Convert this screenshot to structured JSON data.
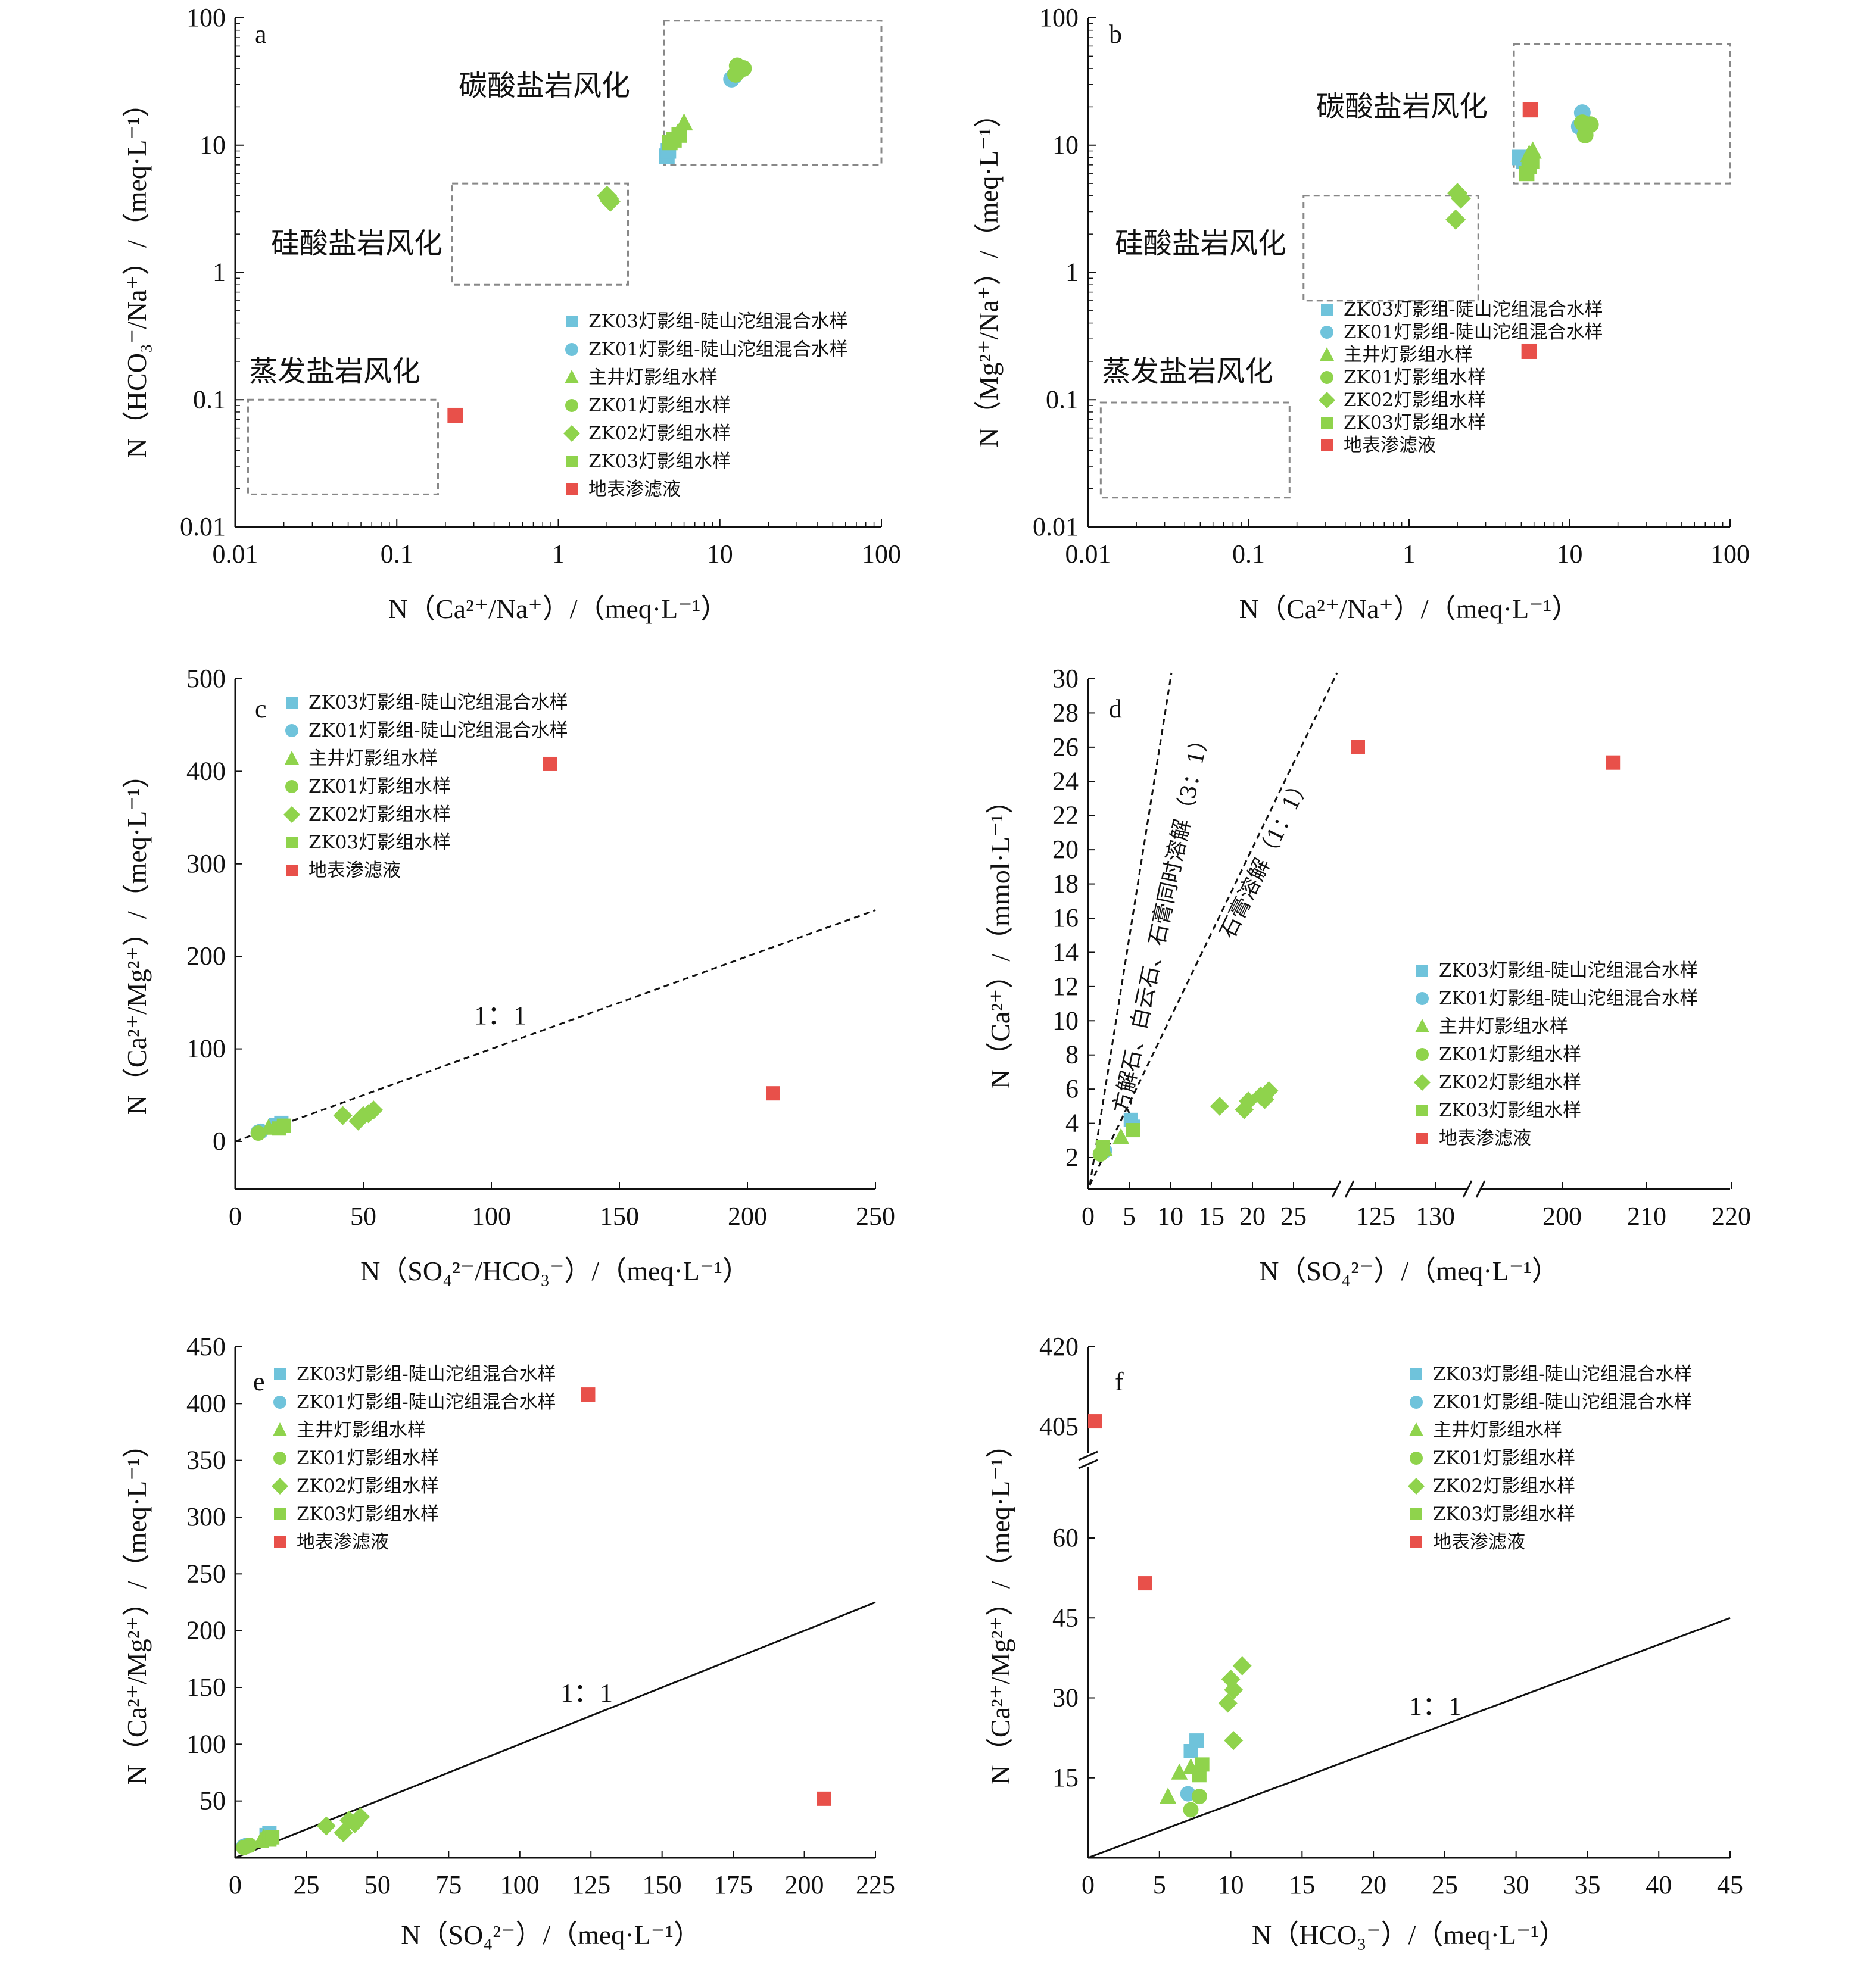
{
  "colors": {
    "blue": "#6fc3db",
    "green": "#8fd34c",
    "red": "#e8504a",
    "axis": "#111111",
    "zone": "#888888"
  },
  "legend": [
    {
      "key": "zk03_mix",
      "label": "ZK03灯影组-陡山沱组混合水样",
      "marker": "square",
      "color": "#6fc3db"
    },
    {
      "key": "zk01_mix",
      "label": "ZK01灯影组-陡山沱组混合水样",
      "marker": "circle",
      "color": "#6fc3db"
    },
    {
      "key": "main",
      "label": "主井灯影组水样",
      "marker": "triangle",
      "color": "#8fd34c"
    },
    {
      "key": "zk01",
      "label": "ZK01灯影组水样",
      "marker": "circle",
      "color": "#8fd34c"
    },
    {
      "key": "zk02",
      "label": "ZK02灯影组水样",
      "marker": "diamond",
      "color": "#8fd34c"
    },
    {
      "key": "zk03",
      "label": "ZK03灯影组水样",
      "marker": "square",
      "color": "#8fd34c"
    },
    {
      "key": "leach",
      "label": "地表渗滤液",
      "marker": "square",
      "color": "#e8504a"
    }
  ],
  "chart_data": [
    {
      "panel": "a",
      "type": "scatter",
      "xscale": "log",
      "yscale": "log",
      "xlim": [
        0.01,
        100
      ],
      "ylim": [
        0.01,
        100
      ],
      "xticks": [
        "0.01",
        "0.1",
        "1",
        "10",
        "100"
      ],
      "yticks": [
        "0.01",
        "0.1",
        "1",
        "10",
        "100"
      ],
      "xlabel": "N（Ca²⁺/Na⁺）/（meq·L⁻¹）",
      "ylabel": "N（HCO₃⁻/Na⁺）/（meq·L⁻¹）",
      "zones": [
        {
          "label": "碳酸盐岩风化",
          "x": [
            4.5,
            100
          ],
          "y": [
            7,
            95
          ]
        },
        {
          "label": "硅酸盐岩风化",
          "x": [
            0.22,
            2.7
          ],
          "y": [
            0.8,
            5
          ]
        },
        {
          "label": "蒸发盐岩风化",
          "x": [
            0.012,
            0.18
          ],
          "y": [
            0.018,
            0.1
          ]
        }
      ],
      "series": [
        {
          "key": "zk03_mix",
          "points": [
            [
              4.7,
              8.2
            ],
            [
              4.8,
              9.0
            ]
          ]
        },
        {
          "key": "zk01_mix",
          "points": [
            [
              11.8,
              33
            ],
            [
              12.3,
              35
            ]
          ]
        },
        {
          "key": "main",
          "points": [
            [
              5.5,
              12.5
            ],
            [
              6.0,
              15.0
            ]
          ]
        },
        {
          "key": "zk01",
          "points": [
            [
              12.5,
              36
            ],
            [
              12.8,
              42
            ],
            [
              14.0,
              40
            ],
            [
              13.0,
              38
            ]
          ]
        },
        {
          "key": "zk02",
          "points": [
            [
              2.0,
              4.0
            ],
            [
              2.1,
              3.6
            ],
            [
              2.05,
              3.8
            ]
          ]
        },
        {
          "key": "zk03",
          "points": [
            [
              5.2,
              11.0
            ],
            [
              5.6,
              12.0
            ],
            [
              4.9,
              10.5
            ]
          ]
        },
        {
          "key": "leach",
          "points": [
            [
              0.23,
              0.075
            ]
          ]
        }
      ]
    },
    {
      "panel": "b",
      "type": "scatter",
      "xscale": "log",
      "yscale": "log",
      "xlim": [
        0.01,
        100
      ],
      "ylim": [
        0.01,
        100
      ],
      "xticks": [
        "0.01",
        "0.1",
        "1",
        "10",
        "100"
      ],
      "yticks": [
        "0.01",
        "0.1",
        "1",
        "10",
        "100"
      ],
      "xlabel": "N（Ca²⁺/Na⁺）/（meq·L⁻¹）",
      "ylabel": "N（Mg²⁺/Na⁺）/（meq·L⁻¹）",
      "zones": [
        {
          "label": "碳酸盐岩风化",
          "x": [
            4.5,
            100
          ],
          "y": [
            5,
            62
          ]
        },
        {
          "label": "硅酸盐岩风化",
          "x": [
            0.22,
            2.7
          ],
          "y": [
            0.6,
            4
          ]
        },
        {
          "label": "蒸发盐岩风化",
          "x": [
            0.012,
            0.18
          ],
          "y": [
            0.017,
            0.095
          ]
        }
      ],
      "series": [
        {
          "key": "zk03_mix",
          "points": [
            [
              4.9,
              8.0
            ],
            [
              5.2,
              7.5
            ]
          ]
        },
        {
          "key": "zk01_mix",
          "points": [
            [
              11.5,
              14.0
            ],
            [
              12.0,
              18.0
            ]
          ]
        },
        {
          "key": "main",
          "points": [
            [
              5.6,
              8.5
            ],
            [
              5.9,
              9.0
            ]
          ]
        },
        {
          "key": "zk01",
          "points": [
            [
              12.5,
              12.0
            ],
            [
              13.5,
              14.5
            ],
            [
              12.0,
              15.0
            ]
          ]
        },
        {
          "key": "zk02",
          "points": [
            [
              2.0,
              4.2
            ],
            [
              2.1,
              3.8
            ],
            [
              1.95,
              2.6
            ]
          ]
        },
        {
          "key": "zk03",
          "points": [
            [
              5.4,
              6.0
            ],
            [
              5.6,
              6.8
            ],
            [
              5.8,
              7.5
            ]
          ]
        },
        {
          "key": "leach",
          "points": [
            [
              5.7,
              19.0
            ],
            [
              5.6,
              0.24
            ]
          ]
        }
      ]
    },
    {
      "panel": "c",
      "type": "scatter",
      "xlim": [
        0,
        250
      ],
      "ylim": [
        -50,
        500
      ],
      "xticks": [
        "0",
        "50",
        "100",
        "150",
        "200",
        "250"
      ],
      "yticks": [
        "0",
        "100",
        "200",
        "300",
        "400",
        "500"
      ],
      "xlabel": "N（SO₄²⁻/HCO₃⁻）/（meq·L⁻¹）",
      "ylabel": "N（Ca²⁺/Mg²⁺）/（meq·L⁻¹）",
      "ratio_line": {
        "label": "1：1",
        "style": "dashed",
        "points": [
          [
            0,
            0
          ],
          [
            250,
            250
          ]
        ]
      },
      "series": [
        {
          "key": "zk03_mix",
          "points": [
            [
              16,
              18
            ],
            [
              18,
              20
            ]
          ]
        },
        {
          "key": "zk01_mix",
          "points": [
            [
              9,
              10
            ],
            [
              10,
              11
            ]
          ]
        },
        {
          "key": "main",
          "points": [
            [
              13,
              15
            ]
          ]
        },
        {
          "key": "zk01",
          "points": [
            [
              9,
              9
            ]
          ]
        },
        {
          "key": "zk02",
          "points": [
            [
              42,
              28
            ],
            [
              48,
              22
            ],
            [
              50,
              28
            ],
            [
              52,
              30
            ],
            [
              54,
              34
            ]
          ]
        },
        {
          "key": "zk03",
          "points": [
            [
              17,
              14
            ],
            [
              19,
              17
            ]
          ]
        },
        {
          "key": "leach",
          "points": [
            [
              123,
              408
            ],
            [
              210,
              52
            ]
          ]
        }
      ]
    },
    {
      "panel": "d",
      "type": "scatter",
      "broken_x_axis": true,
      "ylim": [
        0,
        30
      ],
      "xticks": [
        "0",
        "5",
        "10",
        "15",
        "20",
        "25",
        "125",
        "130",
        "200",
        "210",
        "220"
      ],
      "yticks": [
        "2",
        "4",
        "6",
        "8",
        "10",
        "12",
        "14",
        "16",
        "18",
        "20",
        "22",
        "24",
        "26",
        "28",
        "30"
      ],
      "xlabel": "N（SO₄²⁻）/（meq·L⁻¹）",
      "ylabel": "N（Ca²⁺）/（mmol·L⁻¹）",
      "ratio_lines": [
        {
          "label": "方解石、白云石、石膏同时溶解（3：1）",
          "style": "dashed"
        },
        {
          "label": "石膏溶解（1：1）",
          "style": "dashed"
        }
      ],
      "series": [
        {
          "key": "zk03_mix",
          "points": [
            [
              5.2,
              4.2
            ],
            [
              5.5,
              3.8
            ]
          ]
        },
        {
          "key": "zk01_mix",
          "points": [
            [
              2.0,
              2.4
            ]
          ]
        },
        {
          "key": "main",
          "points": [
            [
              4.0,
              3.2
            ],
            [
              2.0,
              2.5
            ]
          ]
        },
        {
          "key": "zk01",
          "points": [
            [
              1.5,
              2.2
            ]
          ]
        },
        {
          "key": "zk02",
          "points": [
            [
              16.0,
              5.0
            ],
            [
              19.0,
              4.8
            ],
            [
              19.5,
              5.3
            ],
            [
              21.0,
              5.6
            ],
            [
              22.0,
              5.9
            ],
            [
              21.5,
              5.4
            ]
          ]
        },
        {
          "key": "zk03",
          "points": [
            [
              5.5,
              3.6
            ],
            [
              1.8,
              2.6
            ]
          ]
        },
        {
          "key": "leach",
          "points": [
            [
              123.5,
              26.0
            ],
            [
              206.0,
              25.1
            ]
          ]
        }
      ]
    },
    {
      "panel": "e",
      "type": "scatter",
      "xlim": [
        0,
        225
      ],
      "ylim": [
        0,
        450
      ],
      "xticks": [
        "0",
        "25",
        "50",
        "75",
        "100",
        "125",
        "150",
        "175",
        "200",
        "225"
      ],
      "yticks": [
        "50",
        "100",
        "150",
        "200",
        "250",
        "300",
        "350",
        "400",
        "450"
      ],
      "xlabel": "N（SO₄²⁻）/（meq·L⁻¹）",
      "ylabel": "N（Ca²⁺/Mg²⁺）/（meq·L⁻¹）",
      "ratio_line": {
        "label": "1：1",
        "style": "solid",
        "points": [
          [
            0,
            0
          ],
          [
            225,
            225
          ]
        ]
      },
      "series": [
        {
          "key": "zk03_mix",
          "points": [
            [
              11,
              20
            ],
            [
              12,
              22
            ]
          ]
        },
        {
          "key": "zk01_mix",
          "points": [
            [
              3,
              10
            ],
            [
              4,
              11
            ]
          ]
        },
        {
          "key": "main",
          "points": [
            [
              9,
              15
            ],
            [
              10,
              18
            ]
          ]
        },
        {
          "key": "zk01",
          "points": [
            [
              3,
              9
            ],
            [
              5,
              11
            ]
          ]
        },
        {
          "key": "zk02",
          "points": [
            [
              32,
              28
            ],
            [
              38,
              22
            ],
            [
              40,
              33
            ],
            [
              42,
              30
            ],
            [
              44,
              36
            ]
          ]
        },
        {
          "key": "zk03",
          "points": [
            [
              12,
              16
            ],
            [
              13,
              18
            ]
          ]
        },
        {
          "key": "leach",
          "points": [
            [
              124,
              408
            ],
            [
              207,
              52
            ]
          ]
        }
      ]
    },
    {
      "panel": "f",
      "type": "scatter",
      "broken_y_axis": true,
      "xlim": [
        0,
        45
      ],
      "xticks": [
        "0",
        "5",
        "10",
        "15",
        "20",
        "25",
        "30",
        "35",
        "40",
        "45"
      ],
      "yticks": [
        "15",
        "30",
        "45",
        "60",
        "405",
        "420"
      ],
      "xlabel": "N（HCO₃⁻）/（meq·L⁻¹）",
      "ylabel": "N（Ca²⁺/Mg²⁺）/（meq·L⁻¹）",
      "ratio_line": {
        "label": "1：1",
        "style": "solid",
        "points": [
          [
            0,
            0
          ],
          [
            45,
            45
          ]
        ]
      },
      "series": [
        {
          "key": "zk03_mix",
          "points": [
            [
              7.2,
              20.0
            ],
            [
              7.6,
              22.0
            ]
          ]
        },
        {
          "key": "zk01_mix",
          "points": [
            [
              7.0,
              12.0
            ]
          ]
        },
        {
          "key": "main",
          "points": [
            [
              5.6,
              11.5
            ],
            [
              6.4,
              16.0
            ],
            [
              7.2,
              17.0
            ]
          ]
        },
        {
          "key": "zk01",
          "points": [
            [
              7.2,
              9.0
            ],
            [
              7.8,
              11.5
            ]
          ]
        },
        {
          "key": "zk02",
          "points": [
            [
              9.8,
              29.0
            ],
            [
              10.0,
              33.5
            ],
            [
              10.2,
              31.5
            ],
            [
              10.8,
              36.0
            ],
            [
              10.2,
              22.0
            ]
          ]
        },
        {
          "key": "zk03",
          "points": [
            [
              7.8,
              15.5
            ],
            [
              8.0,
              17.5
            ]
          ]
        },
        {
          "key": "leach",
          "points": [
            [
              0.5,
              406.0
            ],
            [
              4.0,
              51.5
            ]
          ]
        }
      ]
    }
  ]
}
